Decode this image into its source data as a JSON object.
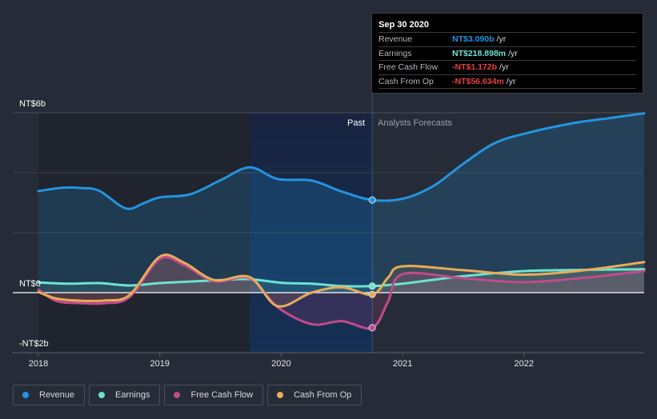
{
  "tooltip": {
    "date": "Sep 30 2020",
    "rows": [
      {
        "label": "Revenue",
        "value": "NT$3.090b",
        "unit": "/yr",
        "color": "#2394df"
      },
      {
        "label": "Earnings",
        "value": "NT$218.898m",
        "unit": "/yr",
        "color": "#6ce3d0"
      },
      {
        "label": "Free Cash Flow",
        "value": "-NT$1.172b",
        "unit": "/yr",
        "color": "#e64040"
      },
      {
        "label": "Cash From Op",
        "value": "-NT$56.634m",
        "unit": "/yr",
        "color": "#e64040"
      }
    ]
  },
  "legend": [
    {
      "label": "Revenue",
      "color": "#2394df"
    },
    {
      "label": "Earnings",
      "color": "#6ce3d0"
    },
    {
      "label": "Free Cash Flow",
      "color": "#c24a8c"
    },
    {
      "label": "Cash From Op",
      "color": "#e8ac5a"
    }
  ],
  "chart_data": {
    "type": "line",
    "title": "",
    "xlabel": "",
    "ylabel": "",
    "xlim": [
      2018,
      2022.99
    ],
    "ylim": [
      -2,
      6
    ],
    "grid": true,
    "y_ticks": [
      {
        "value": 6,
        "label": "NT$6b"
      },
      {
        "value": 0,
        "label": "NT$0"
      },
      {
        "value": -2,
        "label": "-NT$2b"
      }
    ],
    "y_gridlines": [
      6,
      4,
      2,
      0,
      -2
    ],
    "x_ticks": [
      {
        "value": 2018,
        "label": "2018"
      },
      {
        "value": 2019,
        "label": "2019"
      },
      {
        "value": 2020,
        "label": "2020"
      },
      {
        "value": 2021,
        "label": "2021"
      },
      {
        "value": 2022,
        "label": "2022"
      }
    ],
    "past_label": "Past",
    "forecast_label": "Analysts Forecasts",
    "divider_x": 2020.75,
    "highlight_start_x": 2019.74,
    "legend_position": "bottom-left",
    "series": [
      {
        "name": "Revenue",
        "color": "#2394df",
        "x": [
          2018,
          2018.2,
          2018.35,
          2018.5,
          2018.72,
          2018.87,
          2019,
          2019.25,
          2019.5,
          2019.74,
          2019.97,
          2020.25,
          2020.5,
          2020.75,
          2021.0,
          2021.25,
          2021.5,
          2021.75,
          2022.0,
          2022.4,
          2022.7,
          2022.99
        ],
        "y": [
          3.39,
          3.5,
          3.49,
          3.4,
          2.81,
          2.99,
          3.18,
          3.28,
          3.75,
          4.18,
          3.79,
          3.74,
          3.37,
          3.09,
          3.13,
          3.55,
          4.3,
          4.97,
          5.3,
          5.65,
          5.82,
          5.98
        ]
      },
      {
        "name": "Earnings",
        "color": "#6ce3d0",
        "x": [
          2018,
          2018.25,
          2018.5,
          2018.75,
          2019,
          2019.25,
          2019.5,
          2019.74,
          2020.0,
          2020.25,
          2020.5,
          2020.75,
          2021.0,
          2021.5,
          2022.0,
          2022.5,
          2022.99
        ],
        "y": [
          0.34,
          0.3,
          0.32,
          0.24,
          0.32,
          0.37,
          0.42,
          0.45,
          0.33,
          0.3,
          0.22,
          0.22,
          0.3,
          0.55,
          0.72,
          0.76,
          0.78
        ]
      },
      {
        "name": "Free Cash Flow",
        "color": "#c24a8c",
        "x": [
          2018,
          2018.15,
          2018.35,
          2018.55,
          2018.75,
          2019.0,
          2019.2,
          2019.45,
          2019.74,
          2019.97,
          2020.25,
          2020.5,
          2020.75,
          2020.88,
          2021.0,
          2021.5,
          2022.0,
          2022.5,
          2022.99
        ],
        "y": [
          0.1,
          -0.28,
          -0.35,
          -0.35,
          -0.15,
          1.12,
          0.92,
          0.38,
          0.48,
          -0.48,
          -1.05,
          -0.95,
          -1.17,
          -0.3,
          0.62,
          0.48,
          0.35,
          0.5,
          0.72
        ]
      },
      {
        "name": "Cash From Op",
        "color": "#e8ac5a",
        "x": [
          2018,
          2018.15,
          2018.35,
          2018.55,
          2018.75,
          2019.0,
          2019.2,
          2019.45,
          2019.74,
          2019.97,
          2020.25,
          2020.5,
          2020.75,
          2020.88,
          2021.0,
          2021.5,
          2022.0,
          2022.5,
          2022.99
        ],
        "y": [
          0.02,
          -0.2,
          -0.27,
          -0.26,
          -0.08,
          1.2,
          1.0,
          0.42,
          0.52,
          -0.45,
          0.0,
          0.18,
          -0.06,
          0.5,
          0.88,
          0.75,
          0.6,
          0.75,
          1.02
        ]
      }
    ]
  }
}
